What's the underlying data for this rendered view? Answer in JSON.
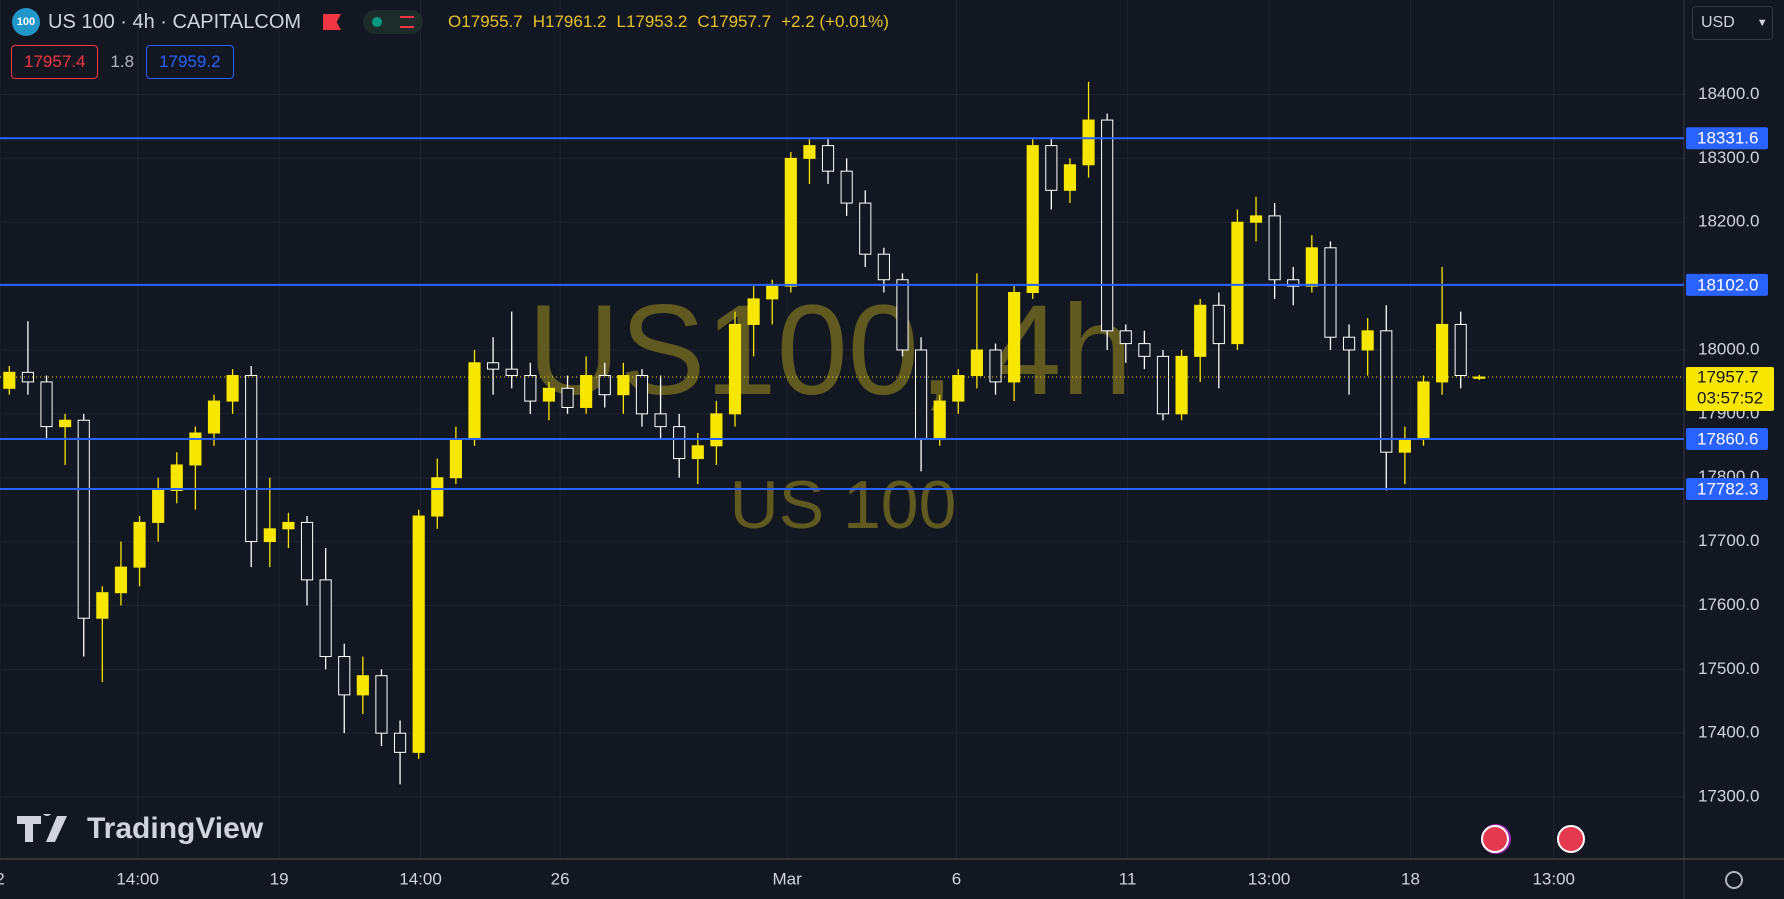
{
  "header": {
    "icon": "100",
    "title": "US 100 · 4h · CAPITALCOM",
    "ohlc": [
      {
        "label": "O",
        "value": 17955.7
      },
      {
        "label": "H",
        "value": 17961.2
      },
      {
        "label": "L",
        "value": 17953.2
      },
      {
        "label": "C",
        "value": 17957.7
      }
    ],
    "change": "+2.2 (+0.01%)",
    "sell": 17957.4,
    "spread": 1.8,
    "buy": 17959.2
  },
  "currency": "USD",
  "watermark": {
    "symbol": "US100, 4h",
    "name": "US 100"
  },
  "logo": "TradingView",
  "chart_data": {
    "type": "candlestick",
    "up_color": "#f7e600",
    "down_color": "#ffffff",
    "ohlc": [
      [
        17940,
        17975,
        17930,
        17965
      ],
      [
        17965,
        18045,
        17930,
        17950
      ],
      [
        17950,
        17960,
        17860,
        17880
      ],
      [
        17880,
        17900,
        17820,
        17890
      ],
      [
        17890,
        17900,
        17520,
        17580
      ],
      [
        17580,
        17630,
        17480,
        17620
      ],
      [
        17620,
        17700,
        17600,
        17660
      ],
      [
        17660,
        17740,
        17630,
        17730
      ],
      [
        17730,
        17800,
        17700,
        17780
      ],
      [
        17780,
        17840,
        17760,
        17820
      ],
      [
        17820,
        17880,
        17750,
        17870
      ],
      [
        17870,
        17930,
        17850,
        17920
      ],
      [
        17920,
        17970,
        17900,
        17960
      ],
      [
        17960,
        17975,
        17660,
        17700
      ],
      [
        17700,
        17800,
        17660,
        17720
      ],
      [
        17720,
        17745,
        17690,
        17730
      ],
      [
        17730,
        17740,
        17600,
        17640
      ],
      [
        17640,
        17690,
        17500,
        17520
      ],
      [
        17520,
        17540,
        17400,
        17460
      ],
      [
        17460,
        17520,
        17430,
        17490
      ],
      [
        17490,
        17500,
        17380,
        17400
      ],
      [
        17400,
        17420,
        17320,
        17370
      ],
      [
        17370,
        17750,
        17360,
        17740
      ],
      [
        17740,
        17830,
        17720,
        17800
      ],
      [
        17800,
        17880,
        17790,
        17860
      ],
      [
        17860,
        18000,
        17850,
        17980
      ],
      [
        17980,
        18020,
        17930,
        17970
      ],
      [
        17970,
        18060,
        17940,
        17960
      ],
      [
        17960,
        17980,
        17900,
        17920
      ],
      [
        17920,
        17950,
        17890,
        17940
      ],
      [
        17940,
        17960,
        17900,
        17910
      ],
      [
        17910,
        17990,
        17900,
        17960
      ],
      [
        17960,
        17980,
        17910,
        17930
      ],
      [
        17930,
        17980,
        17900,
        17960
      ],
      [
        17960,
        17970,
        17880,
        17900
      ],
      [
        17900,
        17960,
        17860,
        17880
      ],
      [
        17880,
        17900,
        17800,
        17830
      ],
      [
        17830,
        17870,
        17790,
        17850
      ],
      [
        17850,
        17920,
        17820,
        17900
      ],
      [
        17900,
        18060,
        17880,
        18040
      ],
      [
        18040,
        18100,
        17990,
        18080
      ],
      [
        18080,
        18110,
        18040,
        18100
      ],
      [
        18100,
        18310,
        18090,
        18300
      ],
      [
        18300,
        18330,
        18260,
        18320
      ],
      [
        18320,
        18330,
        18260,
        18280
      ],
      [
        18280,
        18300,
        18210,
        18230
      ],
      [
        18230,
        18250,
        18130,
        18150
      ],
      [
        18150,
        18160,
        18090,
        18110
      ],
      [
        18110,
        18120,
        17990,
        18000
      ],
      [
        18000,
        18020,
        17810,
        17860
      ],
      [
        17860,
        17930,
        17850,
        17920
      ],
      [
        17920,
        17970,
        17900,
        17960
      ],
      [
        17960,
        18120,
        17940,
        18000
      ],
      [
        18000,
        18010,
        17930,
        17950
      ],
      [
        17950,
        18100,
        17920,
        18090
      ],
      [
        18090,
        18330,
        18080,
        18320
      ],
      [
        18320,
        18330,
        18220,
        18250
      ],
      [
        18250,
        18300,
        18230,
        18290
      ],
      [
        18290,
        18420,
        18270,
        18360
      ],
      [
        18360,
        18370,
        18000,
        18030
      ],
      [
        18030,
        18040,
        17980,
        18010
      ],
      [
        18010,
        18030,
        17970,
        17990
      ],
      [
        17990,
        18000,
        17890,
        17900
      ],
      [
        17900,
        18000,
        17890,
        17990
      ],
      [
        17990,
        18080,
        17950,
        18070
      ],
      [
        18070,
        18090,
        17940,
        18010
      ],
      [
        18010,
        18220,
        18000,
        18200
      ],
      [
        18200,
        18240,
        18170,
        18210
      ],
      [
        18210,
        18230,
        18080,
        18110
      ],
      [
        18110,
        18130,
        18070,
        18100
      ],
      [
        18100,
        18180,
        18090,
        18160
      ],
      [
        18160,
        18170,
        18000,
        18020
      ],
      [
        18020,
        18040,
        17930,
        18000
      ],
      [
        18000,
        18050,
        17960,
        18030
      ],
      [
        18030,
        18070,
        17780,
        17840
      ],
      [
        17840,
        17880,
        17790,
        17860
      ],
      [
        17860,
        17960,
        17850,
        17950
      ],
      [
        17950,
        18130,
        17930,
        18040
      ],
      [
        18040,
        18060,
        17940,
        17960
      ],
      [
        17955.7,
        17961.2,
        17953.2,
        17957.7
      ]
    ],
    "xlim": [
      -0.5,
      90
    ],
    "xticks": [
      {
        "value": -0.5,
        "label": "2"
      },
      {
        "value": 6.9,
        "label": "14:00"
      },
      {
        "value": 14.5,
        "label": "19"
      },
      {
        "value": 22.1,
        "label": "14:00"
      },
      {
        "value": 29.6,
        "label": "26"
      },
      {
        "value": 41.8,
        "label": "Mar"
      },
      {
        "value": 50.9,
        "label": "6"
      },
      {
        "value": 60.1,
        "label": "11"
      },
      {
        "value": 67.7,
        "label": "13:00"
      },
      {
        "value": 75.3,
        "label": "18"
      },
      {
        "value": 83.0,
        "label": "13:00"
      }
    ],
    "ylim": [
      17203,
      18548
    ],
    "yticks": [
      {
        "value": 17300,
        "label": "17300.0"
      },
      {
        "value": 17400,
        "label": "17400.0"
      },
      {
        "value": 17500,
        "label": "17500.0"
      },
      {
        "value": 17600,
        "label": "17600.0"
      },
      {
        "value": 17700,
        "label": "17700.0"
      },
      {
        "value": 17800,
        "label": "17800.0"
      },
      {
        "value": 17900,
        "label": "17900.0"
      },
      {
        "value": 18000,
        "label": "18000.0"
      },
      {
        "value": 18100,
        "label": "18100.0"
      },
      {
        "value": 18200,
        "label": "18200.0"
      },
      {
        "value": 18300,
        "label": "18300.0"
      },
      {
        "value": 18400,
        "label": "18400.0"
      }
    ],
    "grid": true,
    "level_color": "#2962ff",
    "levels": [
      {
        "value": 18331.6,
        "label": "18331.6"
      },
      {
        "value": 18102.0,
        "label": "18102.0"
      },
      {
        "value": 17860.6,
        "label": "17860.6"
      },
      {
        "value": 17782.3,
        "label": "17782.3"
      }
    ],
    "last_price": {
      "value": 17957.7,
      "label": "17957.7",
      "countdown": "03:57:52"
    }
  }
}
